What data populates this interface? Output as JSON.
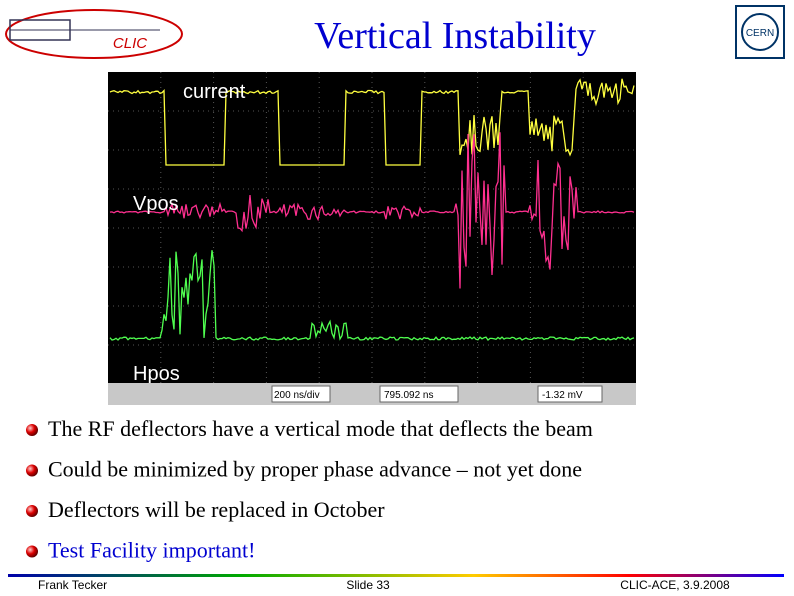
{
  "header": {
    "title": "Vertical Instability",
    "left_logo": "CLIC",
    "right_logo": "CERN"
  },
  "scope": {
    "labels": [
      "current",
      "Vpos",
      "Hpos"
    ],
    "toolbar": [
      "200 ns/div",
      "795.092 ns",
      "-1.32 mV"
    ]
  },
  "bullets": [
    "The RF deflectors have a vertical mode that deflects the beam",
    "Could be minimized by proper phase advance – not yet done",
    "Deflectors will be replaced in October",
    "Test Facility important!"
  ],
  "footer": {
    "author": "Frank Tecker",
    "slide": "Slide 33",
    "event": "CLIC-ACE, 3.9.2008"
  }
}
